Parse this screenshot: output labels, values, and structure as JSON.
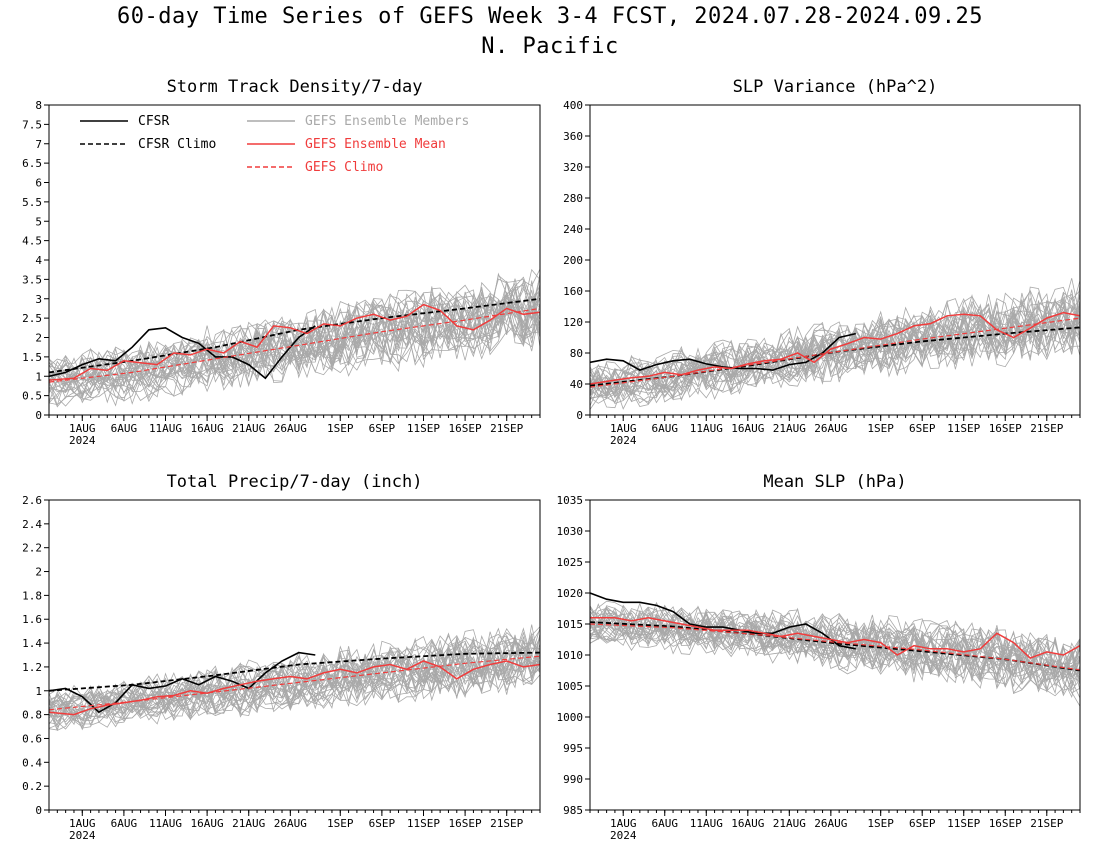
{
  "header": {
    "title_line1": "60-day Time Series of GEFS Week 3-4 FCST, 2024.07.28-2024.09.25",
    "title_line2": "N. Pacific"
  },
  "colors": {
    "cfsr": "#000000",
    "ens_member": "#a9a9a9",
    "ens_mean": "#f03c3c",
    "gefs_climo": "#f03c3c"
  },
  "legend": {
    "cfsr": "CFSR",
    "cfsr_climo": "CFSR Climo",
    "gefs_members": "GEFS Ensemble Members",
    "gefs_mean": "GEFS Ensemble Mean",
    "gefs_climo": "GEFS Climo"
  },
  "chart_data": [
    {
      "type": "line",
      "title": "Storm Track Density/7-day",
      "x_tick_labels": [
        "1AUG",
        "6AUG",
        "11AUG",
        "16AUG",
        "21AUG",
        "26AUG",
        "1SEP",
        "6SEP",
        "11SEP",
        "16SEP",
        "21SEP"
      ],
      "x_tick_day": [
        4,
        9,
        14,
        19,
        24,
        29,
        35,
        40,
        45,
        50,
        55
      ],
      "year_label": "2024",
      "y_ticks": [
        "0",
        "0.5",
        "1",
        "1.5",
        "2",
        "2.5",
        "3",
        "3.5",
        "4",
        "4.5",
        "5",
        "5.5",
        "6",
        "6.5",
        "7",
        "7.5",
        "8"
      ],
      "ylim": [
        0,
        8
      ],
      "grid": false,
      "legend_position": "top-left",
      "series": [
        {
          "name": "CFSR",
          "x": [
            0,
            2,
            4,
            6,
            8,
            10,
            12,
            14,
            16,
            18,
            20,
            22,
            24,
            26,
            28,
            30,
            32
          ],
          "values": [
            1.0,
            1.1,
            1.3,
            1.45,
            1.4,
            1.75,
            2.2,
            2.25,
            2.0,
            1.85,
            1.5,
            1.5,
            1.3,
            0.95,
            1.5,
            2.0,
            2.3
          ]
        },
        {
          "name": "CFSR Climo",
          "x": [
            0,
            10,
            20,
            30,
            40,
            50,
            59
          ],
          "values": [
            1.1,
            1.4,
            1.75,
            2.2,
            2.5,
            2.75,
            3.0
          ]
        },
        {
          "name": "GEFS Ensemble Mean",
          "x": [
            0,
            3,
            5,
            7,
            9,
            11,
            13,
            15,
            17,
            19,
            21,
            23,
            25,
            27,
            29,
            31,
            33,
            35,
            37,
            39,
            41,
            43,
            45,
            47,
            49,
            51,
            53,
            55,
            57,
            59
          ],
          "values": [
            0.9,
            0.95,
            1.2,
            1.15,
            1.4,
            1.35,
            1.3,
            1.6,
            1.55,
            1.7,
            1.6,
            1.9,
            1.75,
            2.3,
            2.25,
            2.1,
            2.35,
            2.3,
            2.5,
            2.6,
            2.45,
            2.55,
            2.85,
            2.7,
            2.3,
            2.2,
            2.45,
            2.75,
            2.6,
            2.65
          ]
        },
        {
          "name": "GEFS Climo",
          "x": [
            0,
            10,
            20,
            30,
            40,
            50,
            59
          ],
          "values": [
            0.85,
            1.1,
            1.45,
            1.8,
            2.15,
            2.45,
            2.75
          ]
        }
      ],
      "members": {
        "count": 31,
        "spread": 0.85,
        "base": "GEFS Climo"
      }
    },
    {
      "type": "line",
      "title": "SLP Variance (hPa^2)",
      "x_tick_labels": [
        "1AUG",
        "6AUG",
        "11AUG",
        "16AUG",
        "21AUG",
        "26AUG",
        "1SEP",
        "6SEP",
        "11SEP",
        "16SEP",
        "21SEP"
      ],
      "x_tick_day": [
        4,
        9,
        14,
        19,
        24,
        29,
        35,
        40,
        45,
        50,
        55
      ],
      "year_label": "2024",
      "y_ticks": [
        "0",
        "40",
        "80",
        "120",
        "160",
        "200",
        "240",
        "280",
        "320",
        "360",
        "400"
      ],
      "ylim": [
        0,
        400
      ],
      "grid": false,
      "series": [
        {
          "name": "CFSR",
          "x": [
            0,
            2,
            4,
            6,
            8,
            10,
            12,
            14,
            16,
            18,
            20,
            22,
            24,
            26,
            28,
            30,
            32
          ],
          "values": [
            68,
            72,
            70,
            58,
            65,
            70,
            72,
            66,
            62,
            60,
            60,
            58,
            65,
            68,
            80,
            100,
            105
          ]
        },
        {
          "name": "CFSR Climo",
          "x": [
            0,
            10,
            20,
            30,
            40,
            50,
            59
          ],
          "values": [
            38,
            50,
            65,
            82,
            95,
            105,
            113
          ]
        },
        {
          "name": "GEFS Ensemble Mean",
          "x": [
            0,
            3,
            5,
            7,
            9,
            11,
            13,
            15,
            17,
            19,
            21,
            23,
            25,
            27,
            29,
            31,
            33,
            35,
            37,
            39,
            41,
            43,
            45,
            47,
            49,
            51,
            53,
            55,
            57,
            59
          ],
          "values": [
            40,
            45,
            48,
            50,
            55,
            52,
            58,
            62,
            60,
            66,
            70,
            72,
            80,
            68,
            85,
            92,
            100,
            98,
            105,
            115,
            118,
            128,
            130,
            128,
            110,
            100,
            112,
            125,
            132,
            128
          ]
        },
        {
          "name": "GEFS Climo",
          "x": [
            0,
            10,
            20,
            30,
            40,
            50,
            59
          ],
          "values": [
            36,
            50,
            66,
            82,
            98,
            112,
            125
          ]
        }
      ],
      "members": {
        "count": 31,
        "spread": 38,
        "base": "GEFS Climo"
      }
    },
    {
      "type": "line",
      "title": "Total Precip/7-day (inch)",
      "x_tick_labels": [
        "1AUG",
        "6AUG",
        "11AUG",
        "16AUG",
        "21AUG",
        "26AUG",
        "1SEP",
        "6SEP",
        "11SEP",
        "16SEP",
        "21SEP"
      ],
      "x_tick_day": [
        4,
        9,
        14,
        19,
        24,
        29,
        35,
        40,
        45,
        50,
        55
      ],
      "year_label": "2024",
      "y_ticks": [
        "0",
        "0.2",
        "0.4",
        "0.6",
        "0.8",
        "1",
        "1.2",
        "1.4",
        "1.6",
        "1.8",
        "2",
        "2.2",
        "2.4",
        "2.6"
      ],
      "ylim": [
        0,
        2.6
      ],
      "grid": false,
      "series": [
        {
          "name": "CFSR",
          "x": [
            0,
            2,
            4,
            6,
            8,
            10,
            12,
            14,
            16,
            18,
            20,
            22,
            24,
            26,
            28,
            30,
            32
          ],
          "values": [
            1.0,
            1.02,
            0.95,
            0.82,
            0.9,
            1.05,
            1.02,
            1.04,
            1.1,
            1.05,
            1.12,
            1.08,
            1.02,
            1.15,
            1.25,
            1.32,
            1.3
          ]
        },
        {
          "name": "CFSR Climo",
          "x": [
            0,
            10,
            20,
            30,
            40,
            50,
            59
          ],
          "values": [
            1.0,
            1.05,
            1.13,
            1.22,
            1.27,
            1.31,
            1.32
          ]
        },
        {
          "name": "GEFS Ensemble Mean",
          "x": [
            0,
            3,
            5,
            7,
            9,
            11,
            13,
            15,
            17,
            19,
            21,
            23,
            25,
            27,
            29,
            31,
            33,
            35,
            37,
            39,
            41,
            43,
            45,
            47,
            49,
            51,
            53,
            55,
            57,
            59
          ],
          "values": [
            0.82,
            0.8,
            0.85,
            0.88,
            0.9,
            0.92,
            0.95,
            0.96,
            1.0,
            0.98,
            1.02,
            1.05,
            1.08,
            1.1,
            1.12,
            1.1,
            1.15,
            1.18,
            1.15,
            1.2,
            1.22,
            1.18,
            1.25,
            1.2,
            1.1,
            1.18,
            1.22,
            1.25,
            1.2,
            1.22
          ]
        },
        {
          "name": "GEFS Climo",
          "x": [
            0,
            10,
            20,
            30,
            40,
            50,
            59
          ],
          "values": [
            0.84,
            0.91,
            0.99,
            1.07,
            1.15,
            1.23,
            1.29
          ]
        }
      ],
      "members": {
        "count": 31,
        "spread": 0.22,
        "base": "GEFS Climo"
      }
    },
    {
      "type": "line",
      "title": "Mean SLP (hPa)",
      "x_tick_labels": [
        "1AUG",
        "6AUG",
        "11AUG",
        "16AUG",
        "21AUG",
        "26AUG",
        "1SEP",
        "6SEP",
        "11SEP",
        "16SEP",
        "21SEP"
      ],
      "x_tick_day": [
        4,
        9,
        14,
        19,
        24,
        29,
        35,
        40,
        45,
        50,
        55
      ],
      "year_label": "2024",
      "y_ticks": [
        "985",
        "990",
        "995",
        "1000",
        "1005",
        "1010",
        "1015",
        "1020",
        "1025",
        "1030",
        "1035"
      ],
      "ylim": [
        985,
        1035
      ],
      "grid": false,
      "series": [
        {
          "name": "CFSR",
          "x": [
            0,
            2,
            4,
            6,
            8,
            10,
            12,
            14,
            16,
            18,
            20,
            22,
            24,
            26,
            28,
            30,
            32
          ],
          "values": [
            1020,
            1019,
            1018.5,
            1018.5,
            1018,
            1017,
            1015,
            1014.5,
            1014.5,
            1014,
            1013.5,
            1013.5,
            1014.5,
            1015,
            1013.5,
            1011.5,
            1011
          ]
        },
        {
          "name": "CFSR Climo",
          "x": [
            0,
            10,
            20,
            30,
            40,
            50,
            59
          ],
          "values": [
            1015.3,
            1014.6,
            1013.3,
            1011.8,
            1010.6,
            1009.3,
            1007.5
          ]
        },
        {
          "name": "GEFS Ensemble Mean",
          "x": [
            0,
            3,
            5,
            7,
            9,
            11,
            13,
            15,
            17,
            19,
            21,
            23,
            25,
            27,
            29,
            31,
            33,
            35,
            37,
            39,
            41,
            43,
            45,
            47,
            49,
            51,
            53,
            55,
            57,
            59
          ],
          "values": [
            1016,
            1016,
            1015.5,
            1016,
            1015.5,
            1015,
            1014.5,
            1014,
            1014,
            1014,
            1013.5,
            1013,
            1013.5,
            1013,
            1012.5,
            1012,
            1012.5,
            1012,
            1010,
            1011.5,
            1011,
            1011,
            1010.5,
            1011,
            1013.5,
            1012,
            1009.5,
            1010.5,
            1010,
            1011.5
          ]
        },
        {
          "name": "GEFS Climo",
          "x": [
            0,
            10,
            20,
            30,
            40,
            50,
            59
          ],
          "values": [
            1015,
            1014.4,
            1013.3,
            1012,
            1010.8,
            1009.3,
            1007.6
          ]
        }
      ],
      "members": {
        "count": 31,
        "spread": 4.5,
        "base": "GEFS Climo"
      }
    }
  ]
}
